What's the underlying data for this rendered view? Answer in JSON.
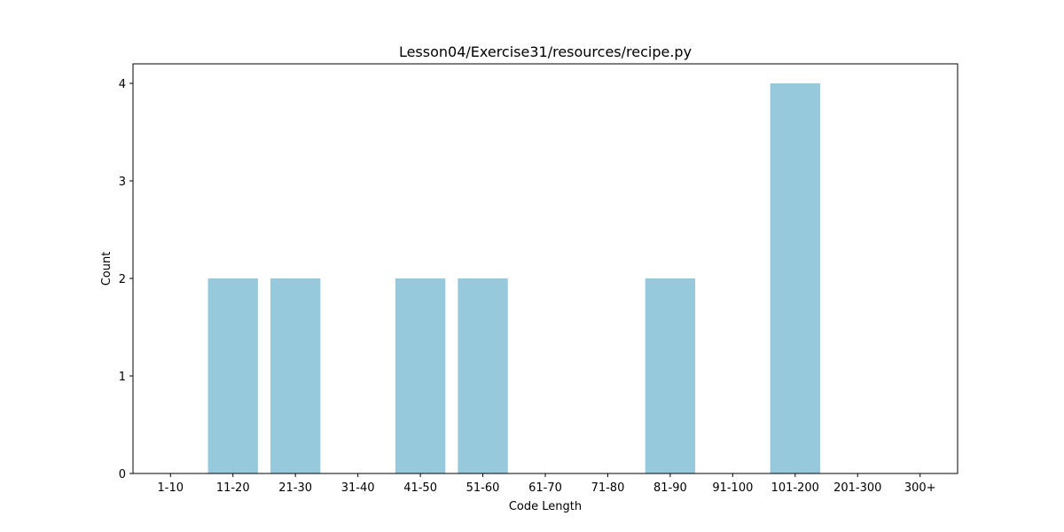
{
  "chart_data": {
    "type": "bar",
    "title": "Lesson04/Exercise31/resources/recipe.py",
    "xlabel": "Code Length",
    "ylabel": "Count",
    "categories": [
      "1-10",
      "11-20",
      "21-30",
      "31-40",
      "41-50",
      "51-60",
      "61-70",
      "71-80",
      "81-90",
      "91-100",
      "101-200",
      "201-300",
      "300+"
    ],
    "values": [
      0,
      2,
      2,
      0,
      2,
      2,
      0,
      0,
      2,
      0,
      4,
      0,
      0
    ],
    "yticks": [
      0,
      1,
      2,
      3,
      4
    ],
    "ylim": [
      0,
      4.2
    ],
    "grid": false,
    "bar_color": "#96c9dc"
  }
}
